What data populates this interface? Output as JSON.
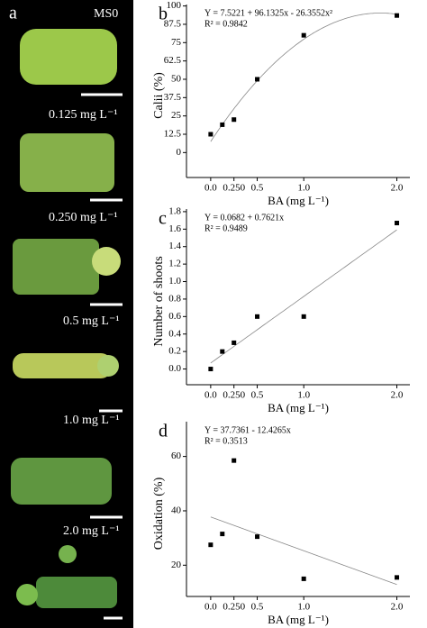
{
  "photo_panel": {
    "label": "a",
    "header": "MS0",
    "captions": [
      "0.125 mg L⁻¹",
      "0.250 mg L⁻¹",
      "0.5 mg L⁻¹",
      "1.0 mg L⁻¹",
      "2.0 mg L⁻¹"
    ]
  },
  "chart_data": [
    {
      "type": "scatter",
      "panel_label": "b",
      "equation": "Y = 7.5221 + 96.1325x - 26.3552x²",
      "r_squared": "R² = 0.9842",
      "xlabel": "BA (mg L⁻¹)",
      "ylabel": "Calii (%)",
      "color": "#000000",
      "x": [
        0,
        0.125,
        0.25,
        0.5,
        1,
        2
      ],
      "values": [
        12.5,
        19,
        22.5,
        50,
        80,
        93.5
      ],
      "fit": {
        "kind": "polynomial",
        "coefficients": [
          7.5221,
          96.1325,
          -26.3552
        ]
      },
      "xlim": [
        -0.26,
        2.14
      ],
      "ylim": [
        -17,
        101
      ],
      "xticks": [
        {
          "value": 0,
          "label": "0.0"
        },
        {
          "value": 0.25,
          "label": "0.250"
        },
        0.5,
        {
          "value": 1,
          "label": "1.0"
        },
        {
          "value": 2,
          "label": "2.0"
        }
      ],
      "yticks": [
        0,
        12.5,
        25,
        37.5,
        50,
        62.5,
        75,
        87.5,
        100
      ]
    },
    {
      "type": "scatter",
      "panel_label": "c",
      "equation": "Y = 0.0682 + 0.7621x",
      "r_squared": "R² = 0.9489",
      "xlabel": "BA (mg L⁻¹)",
      "ylabel": "Number of shoots",
      "color": "#000000",
      "x": [
        0,
        0.125,
        0.25,
        0.5,
        1,
        2
      ],
      "values": [
        0,
        0.2,
        0.3,
        0.6,
        0.6,
        1.67
      ],
      "fit": {
        "kind": "polynomial",
        "coefficients": [
          0.0682,
          0.7621
        ]
      },
      "xlim": [
        -0.26,
        2.14
      ],
      "ylim": [
        -0.18,
        1.83
      ],
      "xticks": [
        {
          "value": 0,
          "label": "0.0"
        },
        {
          "value": 0.25,
          "label": "0.250"
        },
        0.5,
        {
          "value": 1,
          "label": "1.0"
        },
        {
          "value": 2,
          "label": "2.0"
        }
      ],
      "yticks": [
        {
          "value": 0,
          "label": "0.0"
        },
        0.2,
        0.4,
        0.6,
        0.8,
        {
          "value": 1,
          "label": "1.0"
        },
        1.2,
        1.4,
        1.6,
        1.8
      ]
    },
    {
      "type": "scatter",
      "panel_label": "d",
      "equation": "Y = 37.7361 - 12.4265x",
      "r_squared": "R² = 0.3513",
      "xlabel": "BA (mg L⁻¹)",
      "ylabel": "Oxidation (%)",
      "color": "#000000",
      "x": [
        0,
        0.125,
        0.25,
        0.5,
        1,
        2
      ],
      "values": [
        27.5,
        31.5,
        58.5,
        30.5,
        15,
        15.5
      ],
      "fit": {
        "kind": "polynomial",
        "coefficients": [
          37.7361,
          -12.4265
        ]
      },
      "xlim": [
        -0.26,
        2.14
      ],
      "ylim": [
        8.5,
        72.8
      ],
      "xticks": [
        {
          "value": 0,
          "label": "0.0"
        },
        {
          "value": 0.25,
          "label": "0.250"
        },
        0.5,
        {
          "value": 1,
          "label": "1.0"
        },
        {
          "value": 2,
          "label": "2.0"
        }
      ],
      "yticks": [
        20,
        40,
        60
      ]
    }
  ]
}
